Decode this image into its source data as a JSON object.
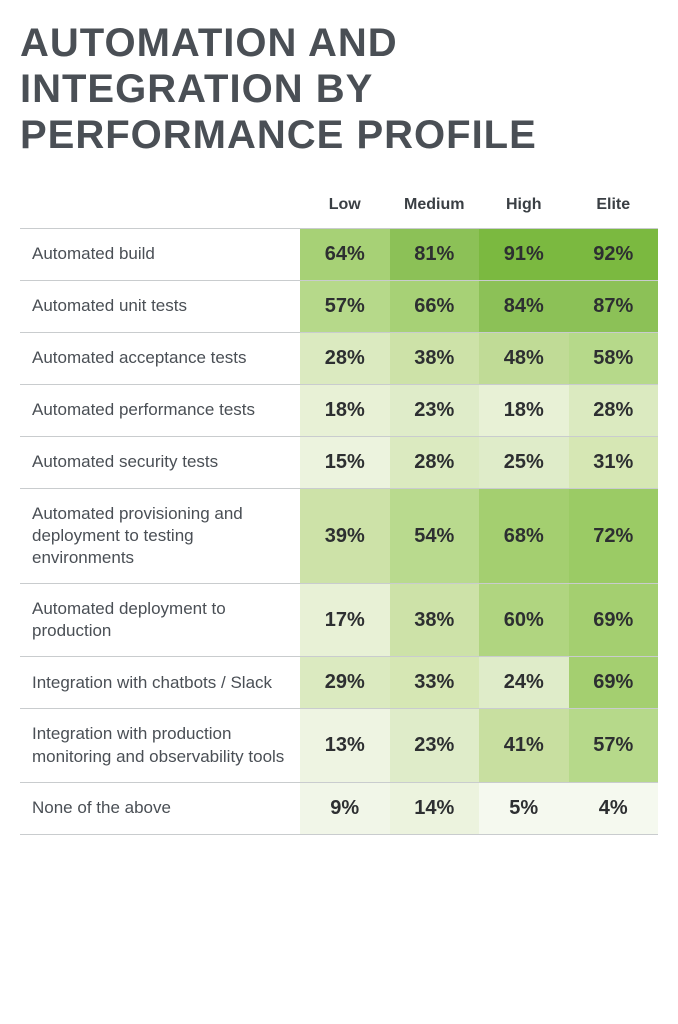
{
  "title": "Automation and Integration by Performance Profile",
  "table": {
    "type": "heatmap-table",
    "columns": [
      "Low",
      "Medium",
      "High",
      "Elite"
    ],
    "header_fontsize": 16,
    "label_fontsize": 17,
    "value_fontsize": 20,
    "label_color": "#4a4f55",
    "value_color": "#2d2f31",
    "background_color": "#ffffff",
    "grid_color": "#c9ccce",
    "rows": [
      {
        "label": "Automated build",
        "cells": [
          "64%",
          "81%",
          "91%",
          "92%"
        ],
        "colors": [
          "#a7d176",
          "#8cc157",
          "#7bb940",
          "#7bb940"
        ]
      },
      {
        "label": "Automated unit tests",
        "cells": [
          "57%",
          "66%",
          "84%",
          "87%"
        ],
        "colors": [
          "#b6d98a",
          "#a7d176",
          "#8cc157",
          "#8cc157"
        ]
      },
      {
        "label": "Automated acceptance tests",
        "cells": [
          "28%",
          "38%",
          "48%",
          "58%"
        ],
        "colors": [
          "#dbeac0",
          "#cde2a8",
          "#c0db96",
          "#b6d98a"
        ]
      },
      {
        "label": "Automated performance tests",
        "cells": [
          "18%",
          "23%",
          "18%",
          "28%"
        ],
        "colors": [
          "#e8f1d6",
          "#dfecc9",
          "#e8f1d6",
          "#dbeac0"
        ]
      },
      {
        "label": "Automated security tests",
        "cells": [
          "15%",
          "28%",
          "25%",
          "31%"
        ],
        "colors": [
          "#ecf3de",
          "#dbeac0",
          "#dfecc9",
          "#d6e7b4"
        ]
      },
      {
        "label": "Automated provisioning and deployment to testing environments",
        "cells": [
          "39%",
          "54%",
          "68%",
          "72%"
        ],
        "colors": [
          "#cde2a8",
          "#b9da8e",
          "#a4cf70",
          "#9bcb65"
        ]
      },
      {
        "label": "Automated deployment to production",
        "cells": [
          "17%",
          "38%",
          "60%",
          "69%"
        ],
        "colors": [
          "#e8f1d6",
          "#cde2a8",
          "#b0d580",
          "#a4cf70"
        ]
      },
      {
        "label": "Integration with chatbots / Slack",
        "cells": [
          "29%",
          "33%",
          "24%",
          "69%"
        ],
        "colors": [
          "#dbeac0",
          "#d6e7b4",
          "#dfecc9",
          "#a4cf70"
        ]
      },
      {
        "label": "Integration with production monitoring and observability tools",
        "cells": [
          "13%",
          "23%",
          "41%",
          "57%"
        ],
        "colors": [
          "#eef4e2",
          "#dfecc9",
          "#c8dfa0",
          "#b6d98a"
        ]
      },
      {
        "label": "None of the above",
        "cells": [
          "9%",
          "14%",
          "5%",
          "4%"
        ],
        "colors": [
          "#f1f6e8",
          "#ecf3de",
          "#f5f9ef",
          "#f5f9ef"
        ]
      }
    ]
  }
}
